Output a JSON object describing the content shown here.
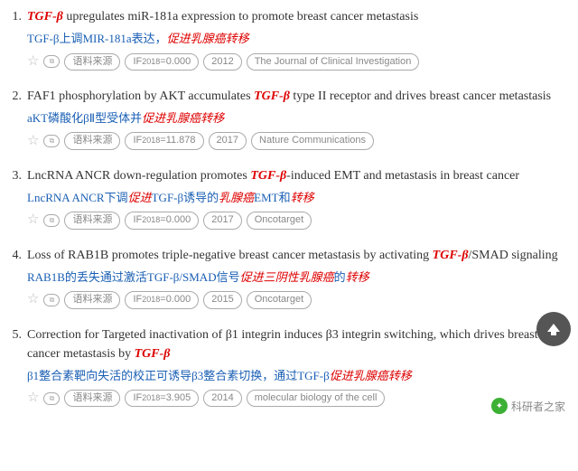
{
  "items": [
    {
      "num": "1.",
      "title_parts": [
        {
          "t": "TGF-β",
          "kw": true
        },
        {
          "t": " upregulates miR-181a expression to promote breast cancer metastasis",
          "kw": false
        }
      ],
      "trans_parts": [
        {
          "t": "TGF-β上调MIR-181a表达，",
          "c": "blue"
        },
        {
          "t": "促进乳腺癌转移",
          "c": "red"
        }
      ],
      "source": "语料来源",
      "if_label": "IF",
      "if_year": "2018",
      "if_val": "=0.000",
      "year": "2012",
      "journal": "The Journal of Clinical Investigation"
    },
    {
      "num": "2.",
      "title_parts": [
        {
          "t": "FAF1 phosphorylation by AKT accumulates ",
          "kw": false
        },
        {
          "t": "TGF-β",
          "kw": true
        },
        {
          "t": " type II receptor and drives breast cancer metastasis",
          "kw": false
        }
      ],
      "trans_parts": [
        {
          "t": "aKT磷酸化βⅡ型受体并",
          "c": "blue"
        },
        {
          "t": "促进乳腺癌转移",
          "c": "red"
        }
      ],
      "source": "语料来源",
      "if_label": "IF",
      "if_year": "2018",
      "if_val": "=11.878",
      "year": "2017",
      "journal": "Nature Communications"
    },
    {
      "num": "3.",
      "title_parts": [
        {
          "t": "LncRNA ANCR down-regulation promotes ",
          "kw": false
        },
        {
          "t": "TGF-β",
          "kw": true
        },
        {
          "t": "-induced EMT and metastasis in breast cancer",
          "kw": false
        }
      ],
      "trans_parts": [
        {
          "t": "LncRNA ANCR下调",
          "c": "blue"
        },
        {
          "t": "促进",
          "c": "red"
        },
        {
          "t": "TGF-β诱导的",
          "c": "blue"
        },
        {
          "t": "乳腺癌",
          "c": "red"
        },
        {
          "t": "EMT和",
          "c": "blue"
        },
        {
          "t": "转移",
          "c": "red"
        }
      ],
      "source": "语料来源",
      "if_label": "IF",
      "if_year": "2018",
      "if_val": "=0.000",
      "year": "2017",
      "journal": "Oncotarget"
    },
    {
      "num": "4.",
      "title_parts": [
        {
          "t": "Loss of RAB1B promotes triple-negative breast cancer metastasis by activating ",
          "kw": false
        },
        {
          "t": "TGF-β",
          "kw": true
        },
        {
          "t": "/SMAD signaling",
          "kw": false
        }
      ],
      "trans_parts": [
        {
          "t": "RAB1B的丢失通过激活TGF-β/SMAD信号",
          "c": "blue"
        },
        {
          "t": "促进三阴性",
          "c": "red"
        },
        {
          "t": "乳腺癌",
          "c": "red"
        },
        {
          "t": "的",
          "c": "blue"
        },
        {
          "t": "转移",
          "c": "red"
        }
      ],
      "source": "语料来源",
      "if_label": "IF",
      "if_year": "2018",
      "if_val": "=0.000",
      "year": "2015",
      "journal": "Oncotarget"
    },
    {
      "num": "5.",
      "title_parts": [
        {
          "t": "Correction for Targeted inactivation of β1 integrin induces β3 integrin switching, which drives breast cancer metastasis by ",
          "kw": false
        },
        {
          "t": "TGF-β",
          "kw": true
        }
      ],
      "trans_parts": [
        {
          "t": "β1整合素靶向失活的校正可诱导β3整合素切换，通过TGF-β",
          "c": "blue"
        },
        {
          "t": "促进乳腺癌转移",
          "c": "red"
        }
      ],
      "source": "语料来源",
      "if_label": "IF",
      "if_year": "2018",
      "if_val": "=3.905",
      "year": "2014",
      "journal": "molecular biology of the cell"
    }
  ],
  "watermark": "科研者之家"
}
